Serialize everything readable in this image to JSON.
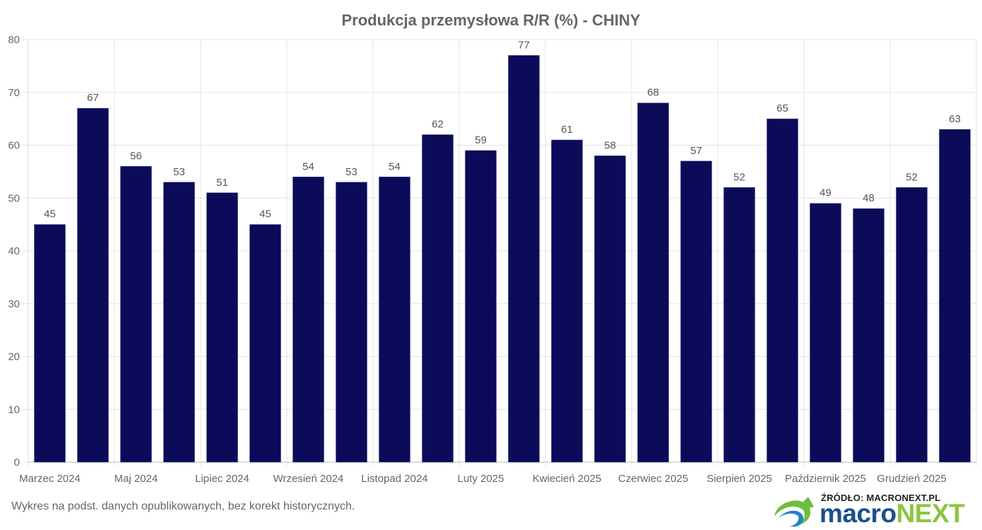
{
  "chart_data": {
    "type": "bar",
    "title": "Produkcja przemysłowa R/R (%) - CHINY",
    "xlabel": "",
    "ylabel": "",
    "x_tick_labels": [
      "Marzec 2024",
      "Maj 2024",
      "Lipiec 2024",
      "Wrzesień 2024",
      "Listopad 2024",
      "Luty 2025",
      "Kwiecień 2025",
      "Czerwiec 2025",
      "Sierpień 2025",
      "Październik 2025",
      "Grudzień 2025"
    ],
    "values": [
      45,
      67,
      56,
      53,
      51,
      45,
      54,
      53,
      54,
      62,
      59,
      77,
      61,
      58,
      68,
      57,
      52,
      65,
      49,
      48,
      52,
      63
    ],
    "ylim": [
      0,
      80
    ],
    "y_ticks": [
      0,
      10,
      20,
      30,
      40,
      50,
      60,
      70,
      80
    ],
    "grid": true,
    "legend": "none",
    "bar_color": "#0b0b5a"
  },
  "footer": {
    "note": "Wykres na podst. danych opublikowanych, bez korekt historycznych.",
    "source": "ŹRÓDŁO: MACRONEXT.PL",
    "brand_part1": "macro",
    "brand_part2": "NEXT"
  }
}
